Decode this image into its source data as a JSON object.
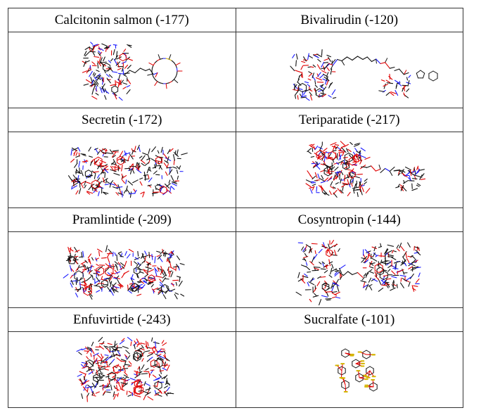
{
  "molecules": [
    {
      "name": "Calcitonin salmon (-177)",
      "kind": "calcitonin"
    },
    {
      "name": "Bivalirudin (-120)",
      "kind": "bivalirudin"
    },
    {
      "name": "Secretin (-172)",
      "kind": "secretin"
    },
    {
      "name": "Teriparatide (-217)",
      "kind": "teriparatide"
    },
    {
      "name": "Pramlintide (-209)",
      "kind": "pramlintide"
    },
    {
      "name": "Cosyntropin (-144)",
      "kind": "cosyntropin"
    },
    {
      "name": "Enfuvirtide (-243)",
      "kind": "enfuvirtide"
    },
    {
      "name": "Sucralfate (-101)",
      "kind": "sucralfate"
    }
  ],
  "colors": {
    "bond": "#111111",
    "oxygen": "#e00000",
    "nitrogen": "#1a1aff",
    "sulfur": "#d4b400"
  }
}
